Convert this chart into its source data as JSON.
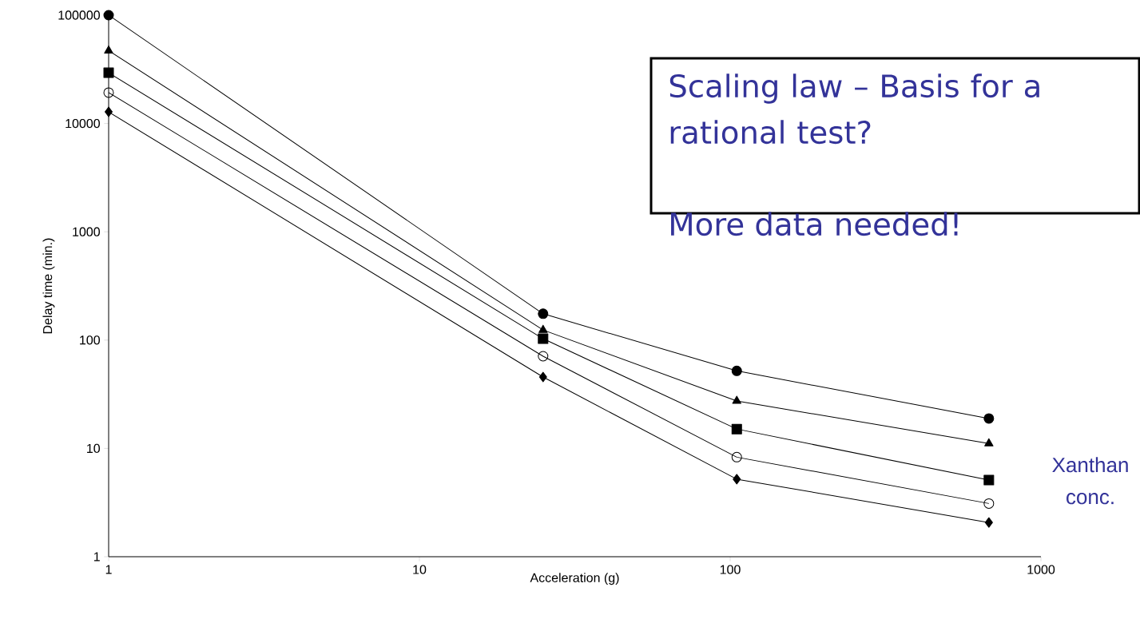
{
  "chart_data": {
    "type": "line",
    "xlabel": "Acceleration (g)",
    "ylabel": "Delay time (min.)",
    "log": "xy",
    "xlim": [
      1,
      1000
    ],
    "ylim": [
      1,
      100000
    ],
    "xticks": [
      1,
      10,
      100,
      1000
    ],
    "yticks": [
      1,
      10,
      100,
      1000,
      10000,
      100000
    ],
    "x": [
      1,
      25,
      105,
      680
    ],
    "series": [
      {
        "color": "#000000",
        "marker": "circle",
        "values": [
          100000,
          175,
          52,
          18.9
        ]
      },
      {
        "color": "#000000",
        "marker": "triangle",
        "values": [
          47000,
          124,
          27.4,
          11.1
        ]
      },
      {
        "color": "#000000",
        "marker": "square",
        "values": [
          29400,
          103,
          15.1,
          5.1
        ]
      },
      {
        "color": "#000000",
        "marker": "open circle",
        "values": [
          19300,
          71,
          8.3,
          3.1
        ]
      },
      {
        "color": "#000000",
        "marker": "diamond",
        "values": [
          12800,
          45.6,
          5.2,
          2.07
        ]
      }
    ],
    "annotations": [
      "Scaling law – Basis for a rational test?",
      "More data needed!",
      "Xanthan conc."
    ]
  }
}
